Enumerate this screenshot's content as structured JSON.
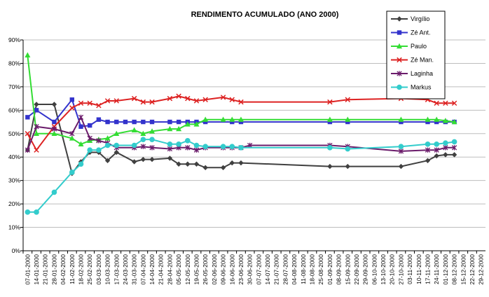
{
  "chart_data": {
    "type": "line",
    "title": "RENDIMENTO ACUMULADO (ANO 2000)",
    "xlabel": "",
    "ylabel": "",
    "ylim": [
      0,
      90
    ],
    "yticks": [
      "0%",
      "10%",
      "20%",
      "30%",
      "40%",
      "50%",
      "60%",
      "70%",
      "80%",
      "90%"
    ],
    "categories": [
      "07-01-2000",
      "14-01-2000",
      "21-01-2000",
      "28-01-2000",
      "04-02-2000",
      "11-02-2000",
      "18-02-2000",
      "25-02-2000",
      "03-03-2000",
      "10-03-2000",
      "17-03-2000",
      "24-03-2000",
      "31-03-2000",
      "07-04-2000",
      "14-04-2000",
      "21-04-2000",
      "28-04-2000",
      "05-05-2000",
      "12-05-2000",
      "19-05-2000",
      "26-05-2000",
      "02-06-2000",
      "09-06-2000",
      "16-06-2000",
      "23-06-2000",
      "30-06-2000",
      "07-07-2000",
      "14-07-2000",
      "21-07-2000",
      "28-07-2000",
      "04-08-2000",
      "11-08-2000",
      "18-08-2000",
      "25-08-2000",
      "01-09-2000",
      "08-09-2000",
      "15-09-2000",
      "22-09-2000",
      "29-09-2000",
      "06-10-2000",
      "13-10-2000",
      "20-10-2000",
      "27-10-2000",
      "03-11-2000",
      "10-11-2000",
      "17-11-2000",
      "24-11-2000",
      "01-12-2000",
      "08-12-2000",
      "15-12-2000",
      "22-12-2000",
      "29-12-2000"
    ],
    "grid": true,
    "legend_position": "top-right",
    "series": [
      {
        "name": "Virgílio",
        "color": "#404040",
        "marker": "diamond",
        "points": [
          [
            0,
            43
          ],
          [
            1,
            62.5
          ],
          [
            3,
            62.5
          ],
          [
            5,
            33
          ],
          [
            6,
            38
          ],
          [
            7,
            42
          ],
          [
            8,
            42
          ],
          [
            9,
            38.5
          ],
          [
            10,
            42
          ],
          [
            12,
            38
          ],
          [
            13,
            39
          ],
          [
            14,
            39
          ],
          [
            16,
            39.5
          ],
          [
            17,
            37
          ],
          [
            18,
            37
          ],
          [
            19,
            37
          ],
          [
            20,
            35.5
          ],
          [
            22,
            35.5
          ],
          [
            23,
            37.5
          ],
          [
            24,
            37.5
          ],
          [
            34,
            36
          ],
          [
            36,
            36
          ],
          [
            42,
            36
          ],
          [
            45,
            38.5
          ],
          [
            46,
            40.5
          ],
          [
            47,
            41
          ],
          [
            48,
            41
          ]
        ]
      },
      {
        "name": "Zé Ant.",
        "color": "#3333cc",
        "marker": "square",
        "points": [
          [
            0,
            57
          ],
          [
            1,
            60
          ],
          [
            3,
            55
          ],
          [
            5,
            64.5
          ],
          [
            6,
            53
          ],
          [
            7,
            53.5
          ],
          [
            8,
            56
          ],
          [
            9,
            55
          ],
          [
            10,
            55
          ],
          [
            11,
            55
          ],
          [
            12,
            55
          ],
          [
            13,
            55
          ],
          [
            14,
            55
          ],
          [
            16,
            55
          ],
          [
            17,
            55
          ],
          [
            18,
            55
          ],
          [
            19,
            55
          ],
          [
            20,
            55
          ],
          [
            23,
            55
          ],
          [
            24,
            55
          ],
          [
            34,
            55
          ],
          [
            36,
            55
          ],
          [
            42,
            55
          ],
          [
            45,
            55
          ],
          [
            46,
            55
          ],
          [
            47,
            55
          ],
          [
            48,
            55
          ]
        ]
      },
      {
        "name": "Paulo",
        "color": "#33dd33",
        "marker": "triangle",
        "points": [
          [
            0,
            83.5
          ],
          [
            1,
            50
          ],
          [
            3,
            50
          ],
          [
            5,
            48
          ],
          [
            6,
            45.5
          ],
          [
            7,
            47
          ],
          [
            8,
            47.5
          ],
          [
            9,
            48
          ],
          [
            10,
            50
          ],
          [
            12,
            51.5
          ],
          [
            13,
            50
          ],
          [
            14,
            51
          ],
          [
            16,
            52
          ],
          [
            17,
            52
          ],
          [
            18,
            54
          ],
          [
            19,
            54
          ],
          [
            20,
            56
          ],
          [
            22,
            56
          ],
          [
            23,
            56
          ],
          [
            24,
            56
          ],
          [
            34,
            56
          ],
          [
            36,
            56
          ],
          [
            42,
            56
          ],
          [
            45,
            56
          ],
          [
            46,
            56
          ],
          [
            47,
            55.5
          ],
          [
            48,
            55
          ]
        ]
      },
      {
        "name": "Zé Man.",
        "color": "#dd2222",
        "marker": "x",
        "points": [
          [
            0,
            50
          ],
          [
            1,
            43
          ],
          [
            3,
            53
          ],
          [
            5,
            61
          ],
          [
            6,
            63
          ],
          [
            7,
            63
          ],
          [
            8,
            62
          ],
          [
            9,
            64
          ],
          [
            10,
            64
          ],
          [
            12,
            65
          ],
          [
            13,
            63.5
          ],
          [
            14,
            63.5
          ],
          [
            16,
            65
          ],
          [
            17,
            66
          ],
          [
            18,
            65
          ],
          [
            19,
            64
          ],
          [
            20,
            64.5
          ],
          [
            22,
            65.5
          ],
          [
            23,
            64.5
          ],
          [
            24,
            63.5
          ],
          [
            34,
            63.5
          ],
          [
            36,
            64.5
          ],
          [
            42,
            65
          ],
          [
            45,
            64.5
          ],
          [
            46,
            63
          ],
          [
            47,
            63
          ],
          [
            48,
            63
          ]
        ]
      },
      {
        "name": "Laginha",
        "color": "#6b1c6b",
        "marker": "star",
        "points": [
          [
            0,
            43
          ],
          [
            1,
            53
          ],
          [
            3,
            52
          ],
          [
            5,
            50
          ],
          [
            6,
            57
          ],
          [
            7,
            48
          ],
          [
            8,
            47
          ],
          [
            9,
            46
          ],
          [
            10,
            44
          ],
          [
            12,
            44
          ],
          [
            13,
            44.5
          ],
          [
            14,
            44
          ],
          [
            16,
            43.5
          ],
          [
            17,
            44
          ],
          [
            18,
            44
          ],
          [
            19,
            43
          ],
          [
            20,
            44
          ],
          [
            22,
            44
          ],
          [
            23,
            44
          ],
          [
            24,
            44
          ],
          [
            25,
            45
          ],
          [
            34,
            45
          ],
          [
            36,
            44.5
          ],
          [
            42,
            42.5
          ],
          [
            45,
            43
          ],
          [
            46,
            43
          ],
          [
            47,
            44
          ],
          [
            48,
            44
          ]
        ]
      },
      {
        "name": "Markus",
        "color": "#33cccc",
        "marker": "circle",
        "points": [
          [
            0,
            16.5
          ],
          [
            1,
            16.5
          ],
          [
            3,
            25
          ],
          [
            5,
            33.5
          ],
          [
            6,
            37
          ],
          [
            7,
            43
          ],
          [
            8,
            43
          ],
          [
            9,
            45
          ],
          [
            10,
            45
          ],
          [
            12,
            45
          ],
          [
            13,
            47.5
          ],
          [
            14,
            47.5
          ],
          [
            16,
            45.5
          ],
          [
            17,
            45.5
          ],
          [
            18,
            47
          ],
          [
            19,
            45
          ],
          [
            20,
            44.5
          ],
          [
            22,
            44.5
          ],
          [
            23,
            44.5
          ],
          [
            24,
            44
          ],
          [
            34,
            44
          ],
          [
            36,
            43.5
          ],
          [
            42,
            44.5
          ],
          [
            45,
            45.5
          ],
          [
            46,
            45.5
          ],
          [
            47,
            46
          ],
          [
            48,
            46.5
          ]
        ]
      }
    ]
  }
}
